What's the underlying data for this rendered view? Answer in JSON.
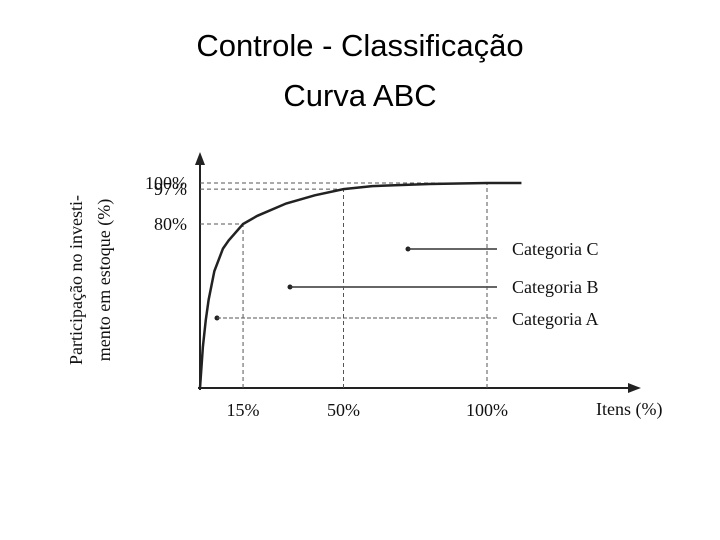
{
  "chart_data": {
    "type": "line",
    "title": [
      "Controle - Classificação",
      "Curva ABC"
    ],
    "x_label": "Itens (%)",
    "y_label": [
      "Participação no investi-",
      "mento em estoque (%)"
    ],
    "x": [
      0,
      1,
      2,
      3,
      5,
      8,
      10,
      15,
      20,
      30,
      40,
      50,
      60,
      80,
      100,
      112
    ],
    "series": [
      {
        "name": "Curva ABC",
        "color": "#222222",
        "values": [
          0,
          20,
          33,
          43,
          57,
          68,
          72,
          80,
          84,
          90,
          94,
          97,
          98.5,
          99.5,
          100,
          100
        ]
      }
    ],
    "xlim": [
      0,
      150
    ],
    "ylim": [
      0,
      110
    ],
    "xticks": [
      {
        "value": 15,
        "label": "15%"
      },
      {
        "value": 50,
        "label": "50%"
      },
      {
        "value": 100,
        "label": "100%"
      }
    ],
    "yticks": [
      {
        "value": 80,
        "label": "80%"
      },
      {
        "value": 97,
        "label": "97%"
      },
      {
        "value": 100,
        "label": "100%"
      }
    ],
    "annotations": [
      "Categoria C",
      "Categoria B",
      "Categoria A"
    ],
    "grid": true
  }
}
